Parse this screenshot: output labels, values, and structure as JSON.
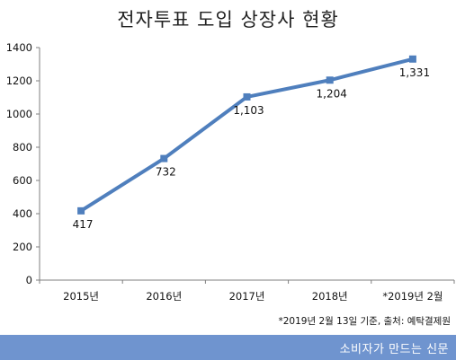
{
  "title": "전자투표 도입 상장사 현황",
  "chart_data": {
    "type": "line",
    "title": "전자투표 도입 상장사 현황",
    "categories": [
      "2015년",
      "2016년",
      "2017년",
      "2018년",
      "*2019년 2월"
    ],
    "series": [
      {
        "values": [
          417,
          732,
          1103,
          1204,
          1331
        ],
        "labels": [
          "417",
          "732",
          "1,103",
          "1,204",
          "1,331"
        ]
      }
    ],
    "yticks": [
      0,
      200,
      400,
      600,
      800,
      1000,
      1200,
      1400
    ],
    "ylim": [
      0,
      1400
    ],
    "grid": false,
    "colors": {
      "line": "#4f7fbd",
      "axis": "#7f7f7f"
    }
  },
  "source_note": "*2019년 2월 13일 기준, 출처: 예탁결제원",
  "footer": {
    "text": "소비자가 만드는 신문",
    "color": "#6f94cf"
  }
}
